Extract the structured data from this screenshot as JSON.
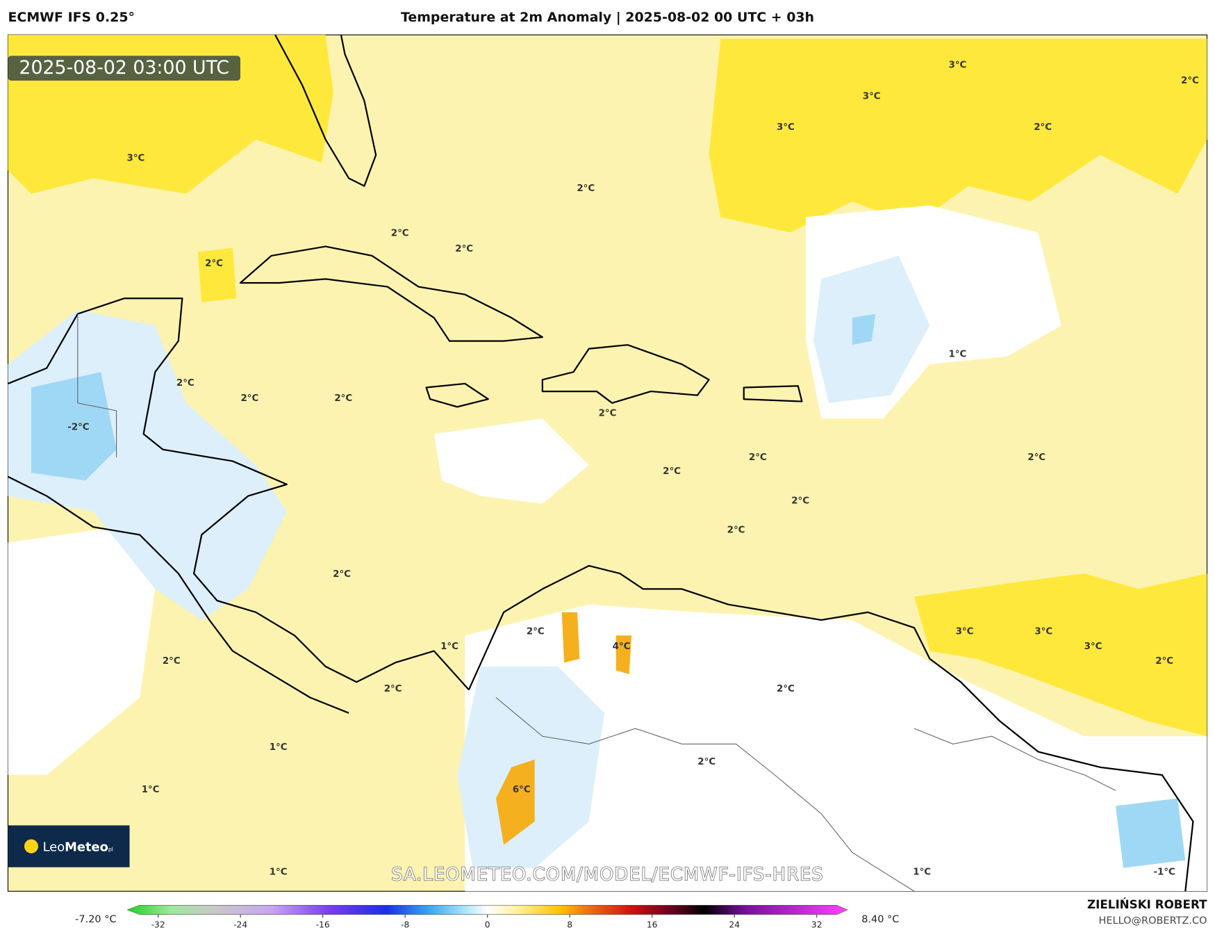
{
  "header": {
    "model": "ECMWF IFS 0.25°",
    "title": "Temperature at 2m Anomaly | 2025-08-02 00 UTC + 03h"
  },
  "map": {
    "timestamp": "2025-08-02 03:00 UTC",
    "watermark": "SA.LEOMETEO.COM/MODEL/ECMWF-IFS-HRES",
    "logo": {
      "name": "Leo",
      "bold": "Meteo",
      "suffix": "pl"
    },
    "contour_labels": [
      "3°C",
      "3°C",
      "2°C",
      "3°C",
      "2°C",
      "3°C",
      "2°C",
      "2°C",
      "2°C",
      "2°C",
      "1°C",
      "2°C",
      "2°C",
      "2°C",
      "-2°C",
      "2°C",
      "2°C",
      "2°C",
      "2°C",
      "2°C",
      "2°C",
      "2°C",
      "3°C",
      "3°C",
      "3°C",
      "2°C",
      "2°C",
      "4°C",
      "1°C",
      "2°C",
      "2°C",
      "2°C",
      "1°C",
      "2°C",
      "1°C",
      "6°C",
      "1°C",
      "1°C",
      "-1°C"
    ]
  },
  "colorbar": {
    "min_label": "-7.20 °C",
    "max_label": "8.40 °C",
    "lim": [
      -35,
      35
    ],
    "ticks": [
      -32,
      -24,
      -16,
      -8,
      0,
      8,
      16,
      24,
      32
    ]
  },
  "footer": {
    "author": "ZIELIŃSKI ROBERT",
    "email": "HELLO@ROBERTZ.CO"
  }
}
